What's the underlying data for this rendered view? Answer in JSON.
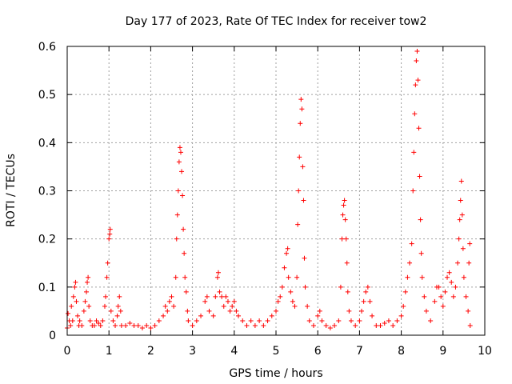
{
  "chart_data": {
    "type": "scatter",
    "title": "Day 177 of 2023, Rate Of TEC Index for receiver tow2",
    "xlabel": "GPS time / hours",
    "ylabel": "ROTI / TECUs",
    "xlim": [
      0,
      10
    ],
    "ylim": [
      0,
      0.6
    ],
    "xticks": [
      "0",
      "1",
      "2",
      "3",
      "4",
      "5",
      "6",
      "7",
      "8",
      "9",
      "10"
    ],
    "yticks": [
      "0",
      "0.1",
      "0.2",
      "0.3",
      "0.4",
      "0.5",
      "0.6"
    ],
    "grid": true,
    "legend": "none",
    "marker": "plus",
    "color": "#ff0000",
    "series": [
      {
        "values": [
          [
            0.0,
            0.015
          ],
          [
            0.02,
            0.045
          ],
          [
            0.05,
            0.03
          ],
          [
            0.08,
            0.02
          ],
          [
            0.1,
            0.06
          ],
          [
            0.13,
            0.03
          ],
          [
            0.15,
            0.08
          ],
          [
            0.18,
            0.1
          ],
          [
            0.2,
            0.11
          ],
          [
            0.22,
            0.07
          ],
          [
            0.25,
            0.04
          ],
          [
            0.28,
            0.02
          ],
          [
            0.3,
            0.03
          ],
          [
            0.35,
            0.02
          ],
          [
            0.4,
            0.05
          ],
          [
            0.43,
            0.07
          ],
          [
            0.46,
            0.09
          ],
          [
            0.48,
            0.11
          ],
          [
            0.5,
            0.12
          ],
          [
            0.52,
            0.06
          ],
          [
            0.55,
            0.03
          ],
          [
            0.6,
            0.02
          ],
          [
            0.65,
            0.02
          ],
          [
            0.7,
            0.03
          ],
          [
            0.75,
            0.025
          ],
          [
            0.8,
            0.02
          ],
          [
            0.85,
            0.03
          ],
          [
            0.9,
            0.06
          ],
          [
            0.92,
            0.08
          ],
          [
            0.95,
            0.12
          ],
          [
            0.97,
            0.15
          ],
          [
            1.0,
            0.2
          ],
          [
            1.02,
            0.21
          ],
          [
            1.03,
            0.22
          ],
          [
            1.05,
            0.05
          ],
          [
            1.1,
            0.03
          ],
          [
            1.15,
            0.02
          ],
          [
            1.2,
            0.04
          ],
          [
            1.22,
            0.06
          ],
          [
            1.25,
            0.08
          ],
          [
            1.28,
            0.05
          ],
          [
            1.3,
            0.02
          ],
          [
            1.4,
            0.02
          ],
          [
            1.5,
            0.025
          ],
          [
            1.6,
            0.02
          ],
          [
            1.7,
            0.02
          ],
          [
            1.8,
            0.015
          ],
          [
            1.9,
            0.02
          ],
          [
            2.0,
            0.015
          ],
          [
            2.1,
            0.02
          ],
          [
            2.2,
            0.03
          ],
          [
            2.3,
            0.04
          ],
          [
            2.35,
            0.06
          ],
          [
            2.4,
            0.05
          ],
          [
            2.45,
            0.07
          ],
          [
            2.5,
            0.08
          ],
          [
            2.55,
            0.06
          ],
          [
            2.6,
            0.12
          ],
          [
            2.62,
            0.2
          ],
          [
            2.64,
            0.25
          ],
          [
            2.66,
            0.3
          ],
          [
            2.68,
            0.36
          ],
          [
            2.7,
            0.39
          ],
          [
            2.72,
            0.38
          ],
          [
            2.74,
            0.34
          ],
          [
            2.76,
            0.29
          ],
          [
            2.78,
            0.22
          ],
          [
            2.8,
            0.17
          ],
          [
            2.82,
            0.12
          ],
          [
            2.85,
            0.09
          ],
          [
            2.88,
            0.05
          ],
          [
            2.9,
            0.03
          ],
          [
            3.0,
            0.02
          ],
          [
            3.1,
            0.03
          ],
          [
            3.2,
            0.04
          ],
          [
            3.3,
            0.07
          ],
          [
            3.35,
            0.08
          ],
          [
            3.4,
            0.05
          ],
          [
            3.5,
            0.04
          ],
          [
            3.55,
            0.08
          ],
          [
            3.6,
            0.12
          ],
          [
            3.62,
            0.13
          ],
          [
            3.65,
            0.09
          ],
          [
            3.7,
            0.08
          ],
          [
            3.75,
            0.06
          ],
          [
            3.8,
            0.08
          ],
          [
            3.85,
            0.07
          ],
          [
            3.9,
            0.05
          ],
          [
            3.95,
            0.06
          ],
          [
            4.0,
            0.07
          ],
          [
            4.05,
            0.05
          ],
          [
            4.1,
            0.04
          ],
          [
            4.2,
            0.03
          ],
          [
            4.3,
            0.02
          ],
          [
            4.4,
            0.03
          ],
          [
            4.5,
            0.02
          ],
          [
            4.6,
            0.03
          ],
          [
            4.7,
            0.02
          ],
          [
            4.8,
            0.03
          ],
          [
            4.9,
            0.04
          ],
          [
            5.0,
            0.05
          ],
          [
            5.05,
            0.07
          ],
          [
            5.1,
            0.08
          ],
          [
            5.15,
            0.1
          ],
          [
            5.2,
            0.14
          ],
          [
            5.25,
            0.17
          ],
          [
            5.28,
            0.18
          ],
          [
            5.3,
            0.12
          ],
          [
            5.35,
            0.09
          ],
          [
            5.4,
            0.07
          ],
          [
            5.45,
            0.06
          ],
          [
            5.5,
            0.12
          ],
          [
            5.52,
            0.23
          ],
          [
            5.54,
            0.3
          ],
          [
            5.56,
            0.37
          ],
          [
            5.58,
            0.44
          ],
          [
            5.6,
            0.49
          ],
          [
            5.62,
            0.47
          ],
          [
            5.64,
            0.35
          ],
          [
            5.66,
            0.28
          ],
          [
            5.68,
            0.16
          ],
          [
            5.7,
            0.1
          ],
          [
            5.75,
            0.06
          ],
          [
            5.8,
            0.03
          ],
          [
            5.9,
            0.02
          ],
          [
            6.0,
            0.04
          ],
          [
            6.05,
            0.05
          ],
          [
            6.1,
            0.03
          ],
          [
            6.2,
            0.02
          ],
          [
            6.3,
            0.015
          ],
          [
            6.4,
            0.02
          ],
          [
            6.5,
            0.03
          ],
          [
            6.55,
            0.1
          ],
          [
            6.58,
            0.2
          ],
          [
            6.6,
            0.25
          ],
          [
            6.62,
            0.27
          ],
          [
            6.64,
            0.28
          ],
          [
            6.66,
            0.24
          ],
          [
            6.68,
            0.2
          ],
          [
            6.7,
            0.15
          ],
          [
            6.72,
            0.09
          ],
          [
            6.75,
            0.05
          ],
          [
            6.8,
            0.03
          ],
          [
            6.9,
            0.02
          ],
          [
            7.0,
            0.03
          ],
          [
            7.05,
            0.05
          ],
          [
            7.1,
            0.07
          ],
          [
            7.15,
            0.09
          ],
          [
            7.2,
            0.1
          ],
          [
            7.25,
            0.07
          ],
          [
            7.3,
            0.04
          ],
          [
            7.4,
            0.02
          ],
          [
            7.5,
            0.02
          ],
          [
            7.6,
            0.025
          ],
          [
            7.7,
            0.03
          ],
          [
            7.8,
            0.02
          ],
          [
            7.9,
            0.03
          ],
          [
            8.0,
            0.04
          ],
          [
            8.05,
            0.06
          ],
          [
            8.1,
            0.09
          ],
          [
            8.15,
            0.12
          ],
          [
            8.2,
            0.15
          ],
          [
            8.25,
            0.19
          ],
          [
            8.28,
            0.3
          ],
          [
            8.3,
            0.38
          ],
          [
            8.32,
            0.46
          ],
          [
            8.34,
            0.52
          ],
          [
            8.36,
            0.57
          ],
          [
            8.38,
            0.59
          ],
          [
            8.4,
            0.53
          ],
          [
            8.42,
            0.43
          ],
          [
            8.44,
            0.33
          ],
          [
            8.46,
            0.24
          ],
          [
            8.48,
            0.17
          ],
          [
            8.5,
            0.12
          ],
          [
            8.55,
            0.08
          ],
          [
            8.6,
            0.05
          ],
          [
            8.7,
            0.03
          ],
          [
            8.8,
            0.07
          ],
          [
            8.85,
            0.1
          ],
          [
            8.9,
            0.1
          ],
          [
            8.95,
            0.08
          ],
          [
            9.0,
            0.06
          ],
          [
            9.05,
            0.09
          ],
          [
            9.1,
            0.12
          ],
          [
            9.15,
            0.13
          ],
          [
            9.2,
            0.11
          ],
          [
            9.25,
            0.08
          ],
          [
            9.3,
            0.1
          ],
          [
            9.35,
            0.15
          ],
          [
            9.38,
            0.2
          ],
          [
            9.4,
            0.24
          ],
          [
            9.42,
            0.28
          ],
          [
            9.44,
            0.32
          ],
          [
            9.46,
            0.25
          ],
          [
            9.48,
            0.18
          ],
          [
            9.5,
            0.12
          ],
          [
            9.55,
            0.08
          ],
          [
            9.6,
            0.05
          ],
          [
            9.62,
            0.15
          ],
          [
            9.64,
            0.19
          ],
          [
            9.65,
            0.02
          ]
        ]
      }
    ]
  }
}
